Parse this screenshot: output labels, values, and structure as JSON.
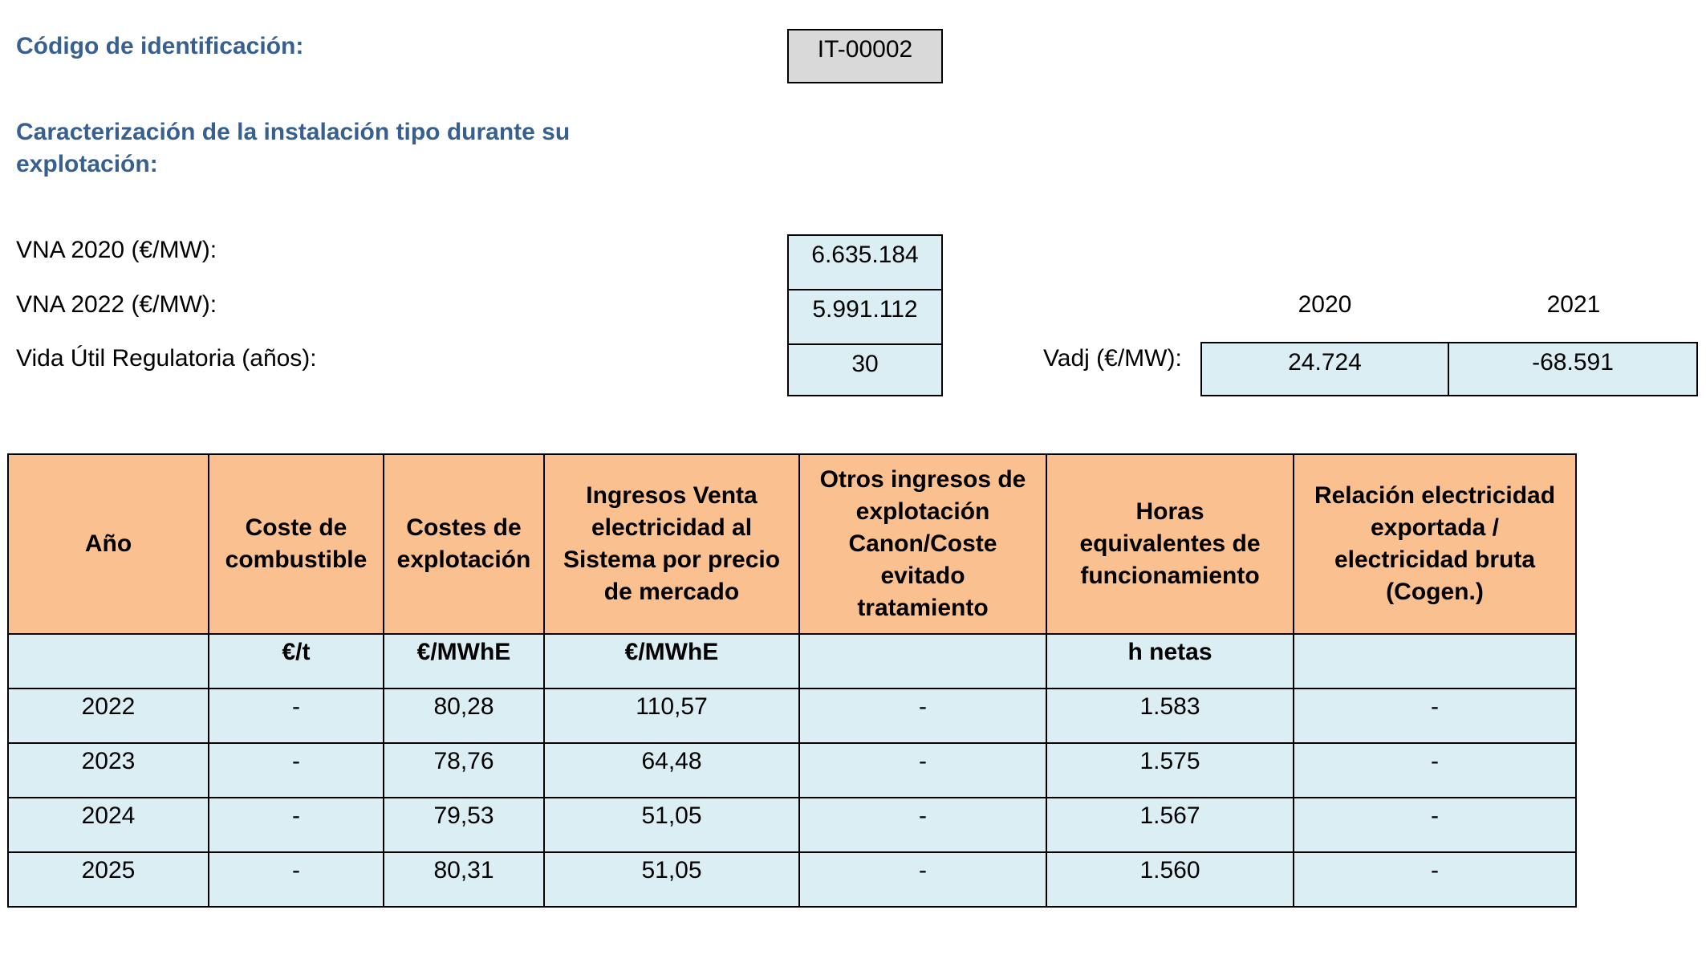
{
  "header": {
    "id_label": "Código de identificación:",
    "id_value": "IT-00002",
    "section_title_line1": "Caracterización de la instalación tipo durante su",
    "section_title_line2": "explotación:"
  },
  "params": {
    "vna2020_label": "VNA 2020 (€/MW):",
    "vna2020_value": "6.635.184",
    "vna2022_label": "VNA 2022 (€/MW):",
    "vna2022_value": "5.991.112",
    "vida_label": "Vida Útil Regulatoria (años):",
    "vida_value": "30"
  },
  "vadj": {
    "label": "Vadj (€/MW):",
    "years": [
      "2020",
      "2021"
    ],
    "values": [
      "24.724",
      "-68.591"
    ]
  },
  "table": {
    "headers": [
      [
        "Año"
      ],
      [
        "Coste de",
        "combustible"
      ],
      [
        "Costes de",
        "explotación"
      ],
      [
        "Ingresos Venta",
        "electricidad al",
        "Sistema por precio",
        "de mercado"
      ],
      [
        "Otros ingresos de",
        "explotación",
        "Canon/Coste",
        "evitado",
        "tratamiento"
      ],
      [
        "Horas",
        "equivalentes de",
        "funcionamiento"
      ],
      [
        "Relación electricidad",
        "exportada /",
        "electricidad bruta",
        "(Cogen.)"
      ]
    ],
    "units": [
      "",
      "€/t",
      "€/MWhE",
      "€/MWhE",
      "",
      "h netas",
      ""
    ],
    "rows": [
      [
        "2022",
        "-",
        "80,28",
        "110,57",
        "-",
        "1.583",
        "-"
      ],
      [
        "2023",
        "-",
        "78,76",
        "64,48",
        "-",
        "1.575",
        "-"
      ],
      [
        "2024",
        "-",
        "79,53",
        "51,05",
        "-",
        "1.567",
        "-"
      ],
      [
        "2025",
        "-",
        "80,31",
        "51,05",
        "-",
        "1.560",
        "-"
      ]
    ]
  }
}
